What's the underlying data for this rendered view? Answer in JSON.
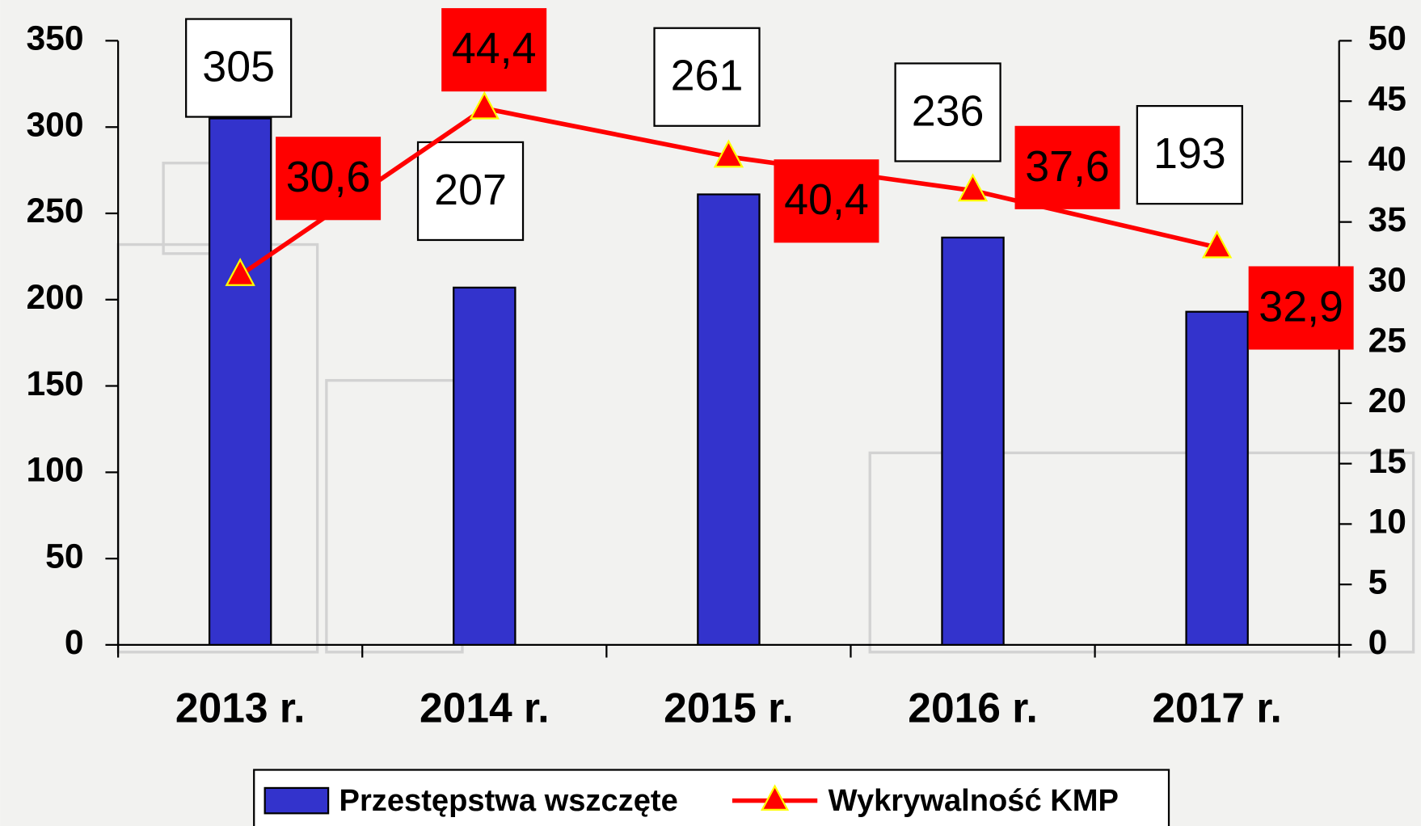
{
  "chart_data": {
    "type": "bar",
    "categories": [
      "2013 r.",
      "2014 r.",
      "2015 r.",
      "2016 r.",
      "2017 r."
    ],
    "series": [
      {
        "name": "Przestępstwa wszczęte",
        "color": "#3333cc",
        "values": [
          305,
          207,
          261,
          236,
          193
        ]
      },
      {
        "name": "Wykrywalność KMP",
        "type": "line",
        "axis": "y2",
        "color": "#ff0000",
        "marker_color": "#ffff00",
        "values": [
          30.6,
          44.4,
          40.4,
          37.6,
          32.9
        ],
        "value_labels": [
          "30,6",
          "44,4",
          "40,4",
          "37,6",
          "32,9"
        ]
      }
    ],
    "ylim": [
      0,
      350
    ],
    "yticks": [
      0,
      50,
      100,
      150,
      200,
      250,
      300,
      350
    ],
    "y2lim": [
      0,
      50
    ],
    "y2ticks": [
      0,
      5,
      10,
      15,
      20,
      25,
      30,
      35,
      40,
      45,
      50
    ],
    "legend": "bottom"
  }
}
